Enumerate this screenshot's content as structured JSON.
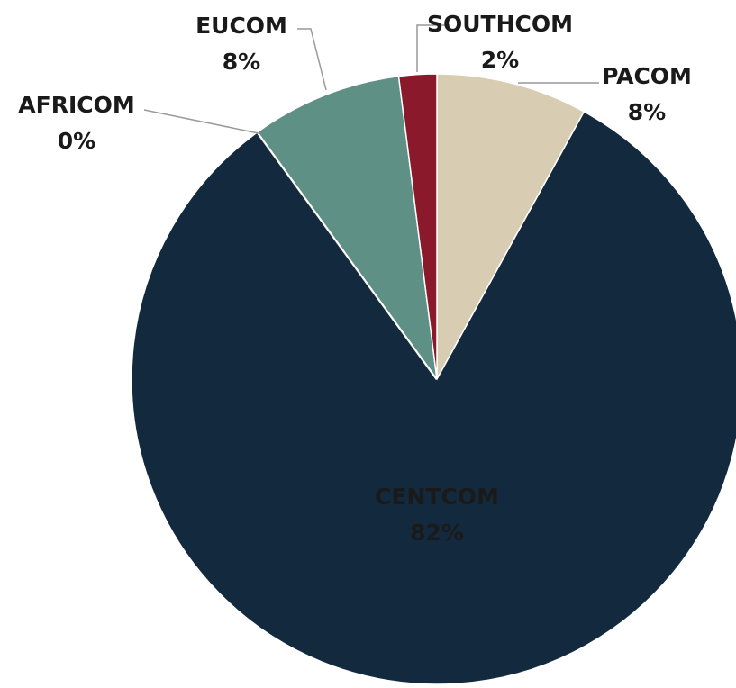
{
  "chart_data": {
    "type": "pie",
    "categories": [
      "PACOM",
      "CENTCOM",
      "AFRICOM",
      "EUCOM",
      "SOUTHCOM"
    ],
    "values": [
      8,
      82,
      0,
      8,
      2
    ],
    "value_labels": [
      "8%",
      "82%",
      "0%",
      "8%",
      "2%"
    ],
    "colors": [
      "#d8ccb2",
      "#13293d",
      "#e0d2b4",
      "#5f9086",
      "#8a1a2b"
    ]
  }
}
